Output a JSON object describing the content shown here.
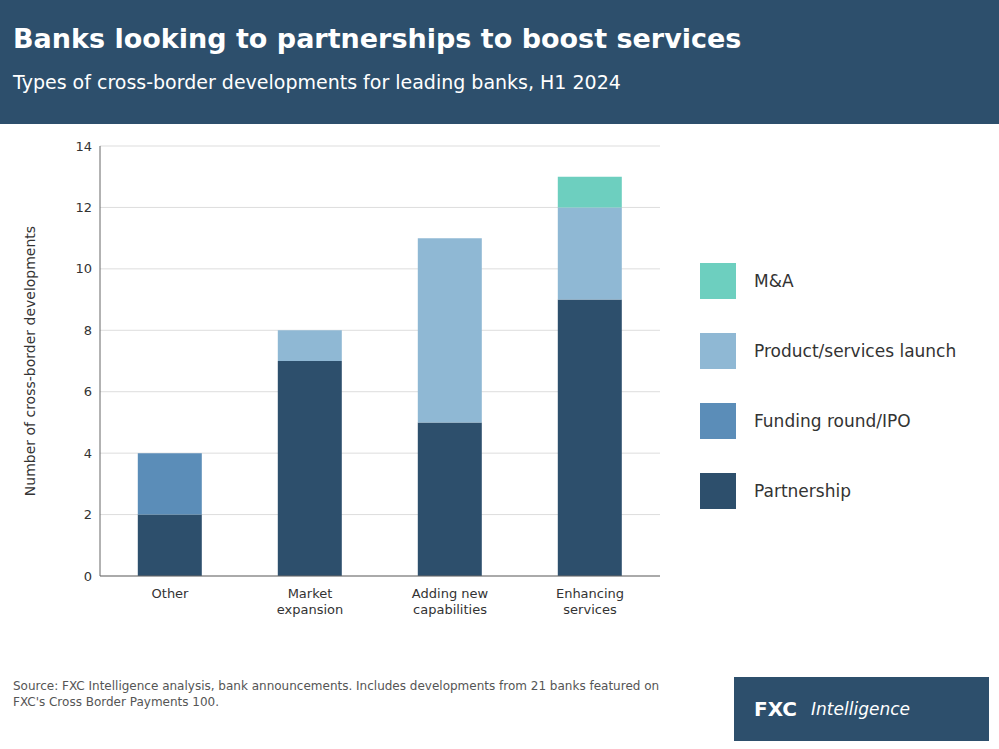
{
  "chart_data": {
    "type": "bar",
    "title": "Banks looking to partnerships to boost services",
    "subtitle": "Types of cross-border developments for leading banks, H1 2024",
    "categories": [
      "Other",
      "Market\nexpansion",
      "Adding new\ncapabilities",
      "Enhancing\nservices"
    ],
    "series": [
      {
        "name": "Partnership",
        "color": "#2D4F6C",
        "values": [
          2,
          7,
          5,
          9
        ]
      },
      {
        "name": "Funding round/IPO",
        "color": "#5B8DB8",
        "values": [
          2,
          0,
          0,
          0
        ]
      },
      {
        "name": "Product/services launch",
        "color": "#8FB8D4",
        "values": [
          0,
          1,
          6,
          3
        ]
      },
      {
        "name": "M&A",
        "color": "#6DCFBF",
        "values": [
          0,
          0,
          0,
          1
        ]
      }
    ],
    "stacked": true,
    "ylabel": "Number of cross-border developments",
    "ylim": [
      0,
      14
    ],
    "yticks": [
      0,
      2,
      4,
      6,
      8,
      10,
      12,
      14
    ],
    "grid": true,
    "legend": "right",
    "annotations": [
      "Source: FXC Intelligence analysis, bank announcements. Includes developments from 21 banks featured on\nFXC's Cross Border Payments 100.",
      "FXC",
      "Intelligence"
    ]
  }
}
